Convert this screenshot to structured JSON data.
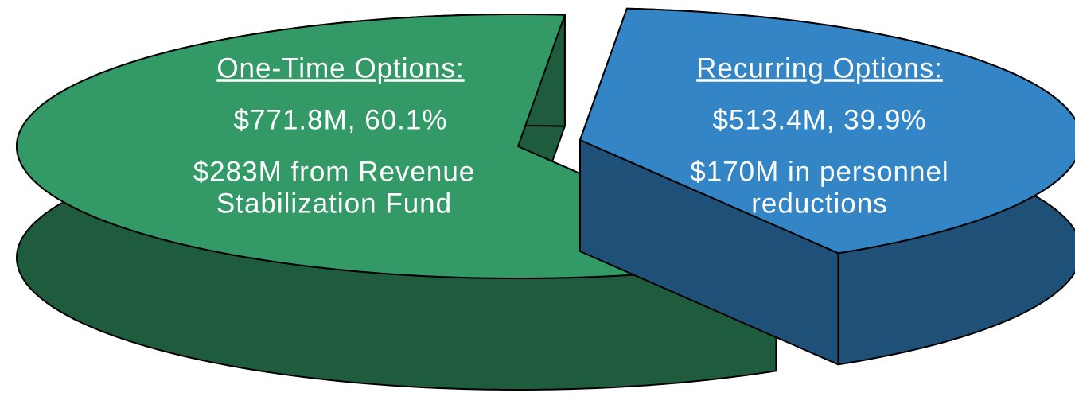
{
  "chart_data": {
    "type": "pie",
    "categories": [
      "One-Time Options:",
      "Recurring Options:"
    ],
    "values": [
      60.1,
      39.9
    ],
    "value_labels": [
      "$771.8M, 60.1%",
      "$513.4M, 39.9%"
    ],
    "annotations": [
      [
        "$283M from Revenue",
        "Stabilization Fund"
      ],
      [
        "$170M in personnel",
        "reductions"
      ]
    ],
    "colors": [
      "#339966",
      "#3385c6"
    ]
  }
}
